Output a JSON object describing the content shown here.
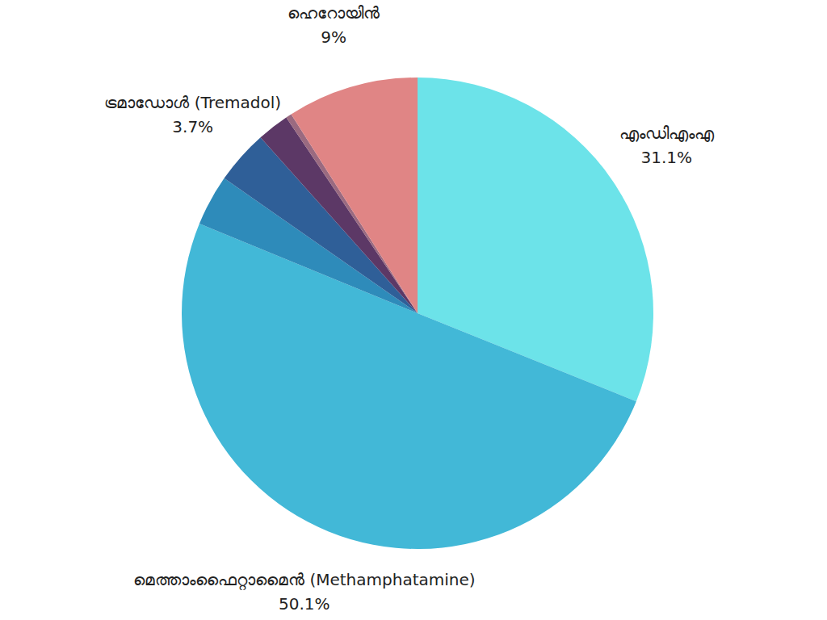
{
  "chart_data": {
    "type": "pie",
    "categories": [
      "എംഡിഎംഎ",
      "മെത്താംഫൈറ്റാമൈൻ (Methamphatamine)",
      null,
      "ട്രമാഡോൾ (Tremadol)",
      null,
      null,
      "ഹെറോയിൻ"
    ],
    "values": [
      31.1,
      50.1,
      3.5,
      3.7,
      2.2,
      0.4,
      9
    ],
    "value_labels": [
      "31.1%",
      "50.1%",
      null,
      "3.7%",
      null,
      null,
      "9%"
    ],
    "colors": [
      "#6ce3e9",
      "#42b8d7",
      "#2e8bba",
      "#2f5f98",
      "#5c3866",
      "#9a6a80",
      "#e08585"
    ],
    "data_labels": true
  }
}
